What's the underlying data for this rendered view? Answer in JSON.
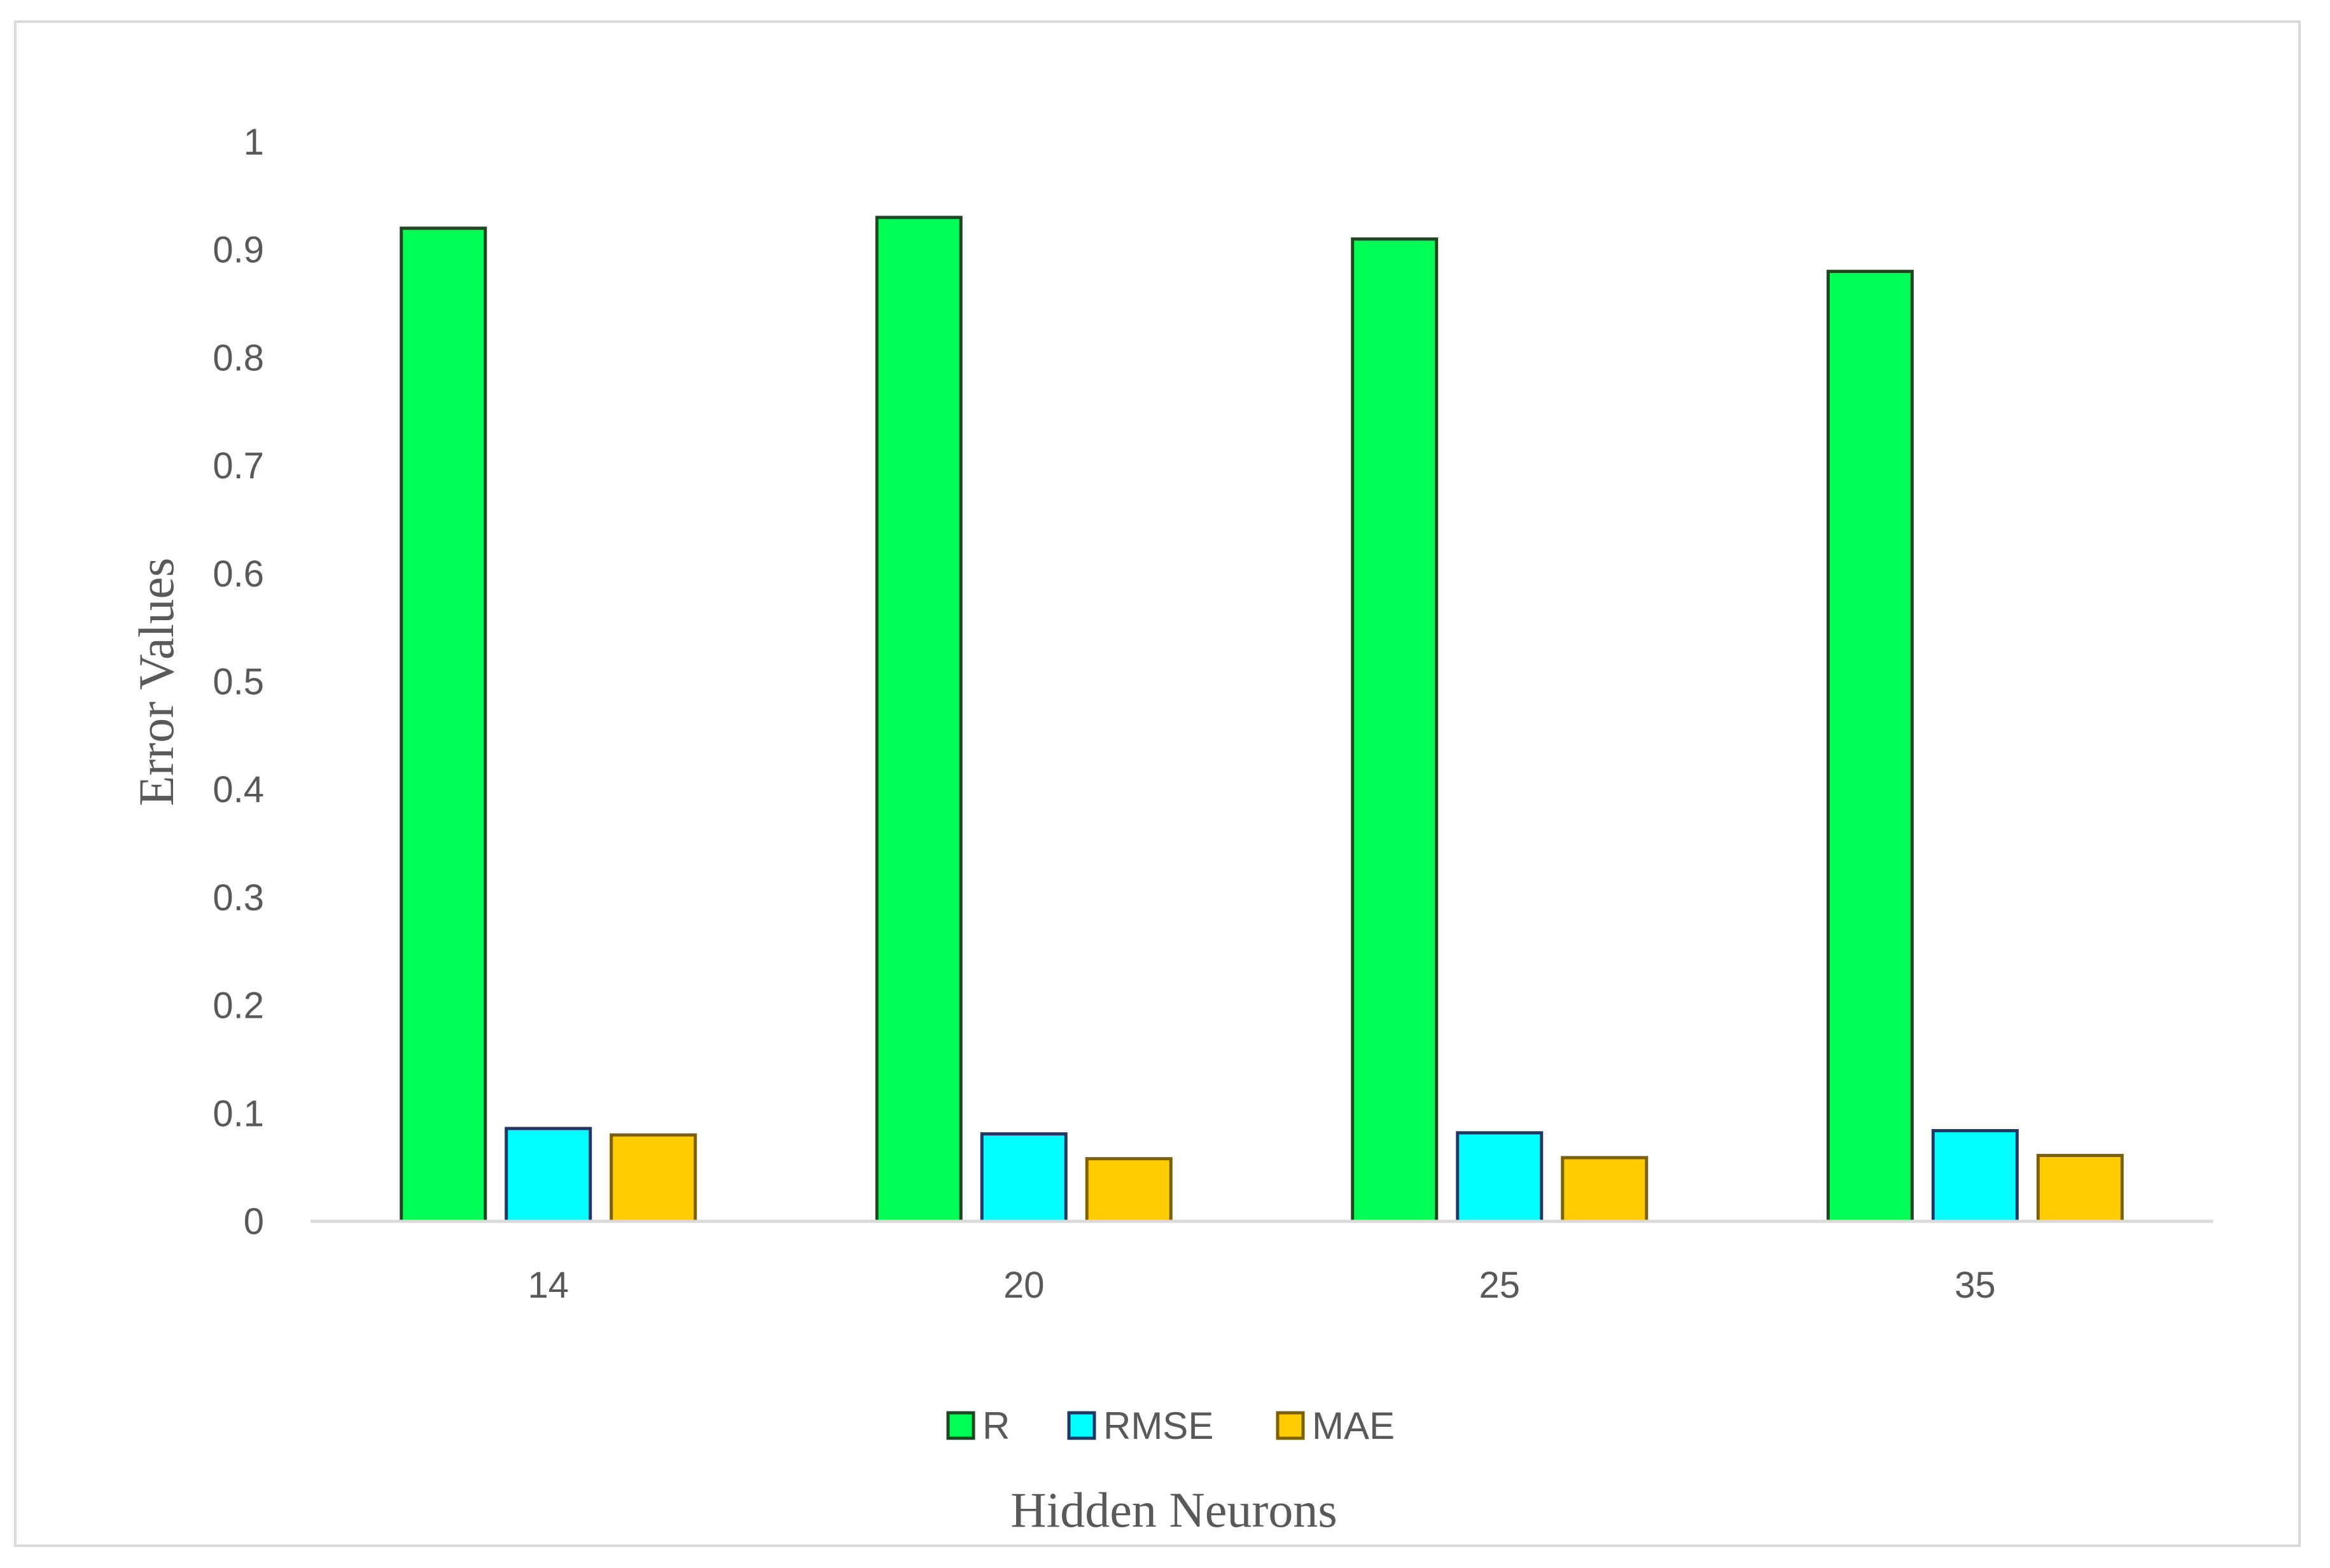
{
  "chart_data": {
    "type": "bar",
    "title": "",
    "xlabel": "Hidden Neurons",
    "ylabel": "Error Values",
    "categories": [
      "14",
      "20",
      "25",
      "35"
    ],
    "ylim": [
      0,
      1
    ],
    "yticks": [
      "0",
      "0.1",
      "0.2",
      "0.3",
      "0.4",
      "0.5",
      "0.6",
      "0.7",
      "0.8",
      "0.9",
      "1"
    ],
    "grid": false,
    "legend_position": "bottom",
    "series": [
      {
        "name": "R",
        "values": [
          0.92,
          0.93,
          0.91,
          0.88
        ],
        "color": "#00FF55",
        "stroke": "#1E4620"
      },
      {
        "name": "RMSE",
        "values": [
          0.086,
          0.081,
          0.082,
          0.084
        ],
        "color": "#00FFFF",
        "stroke": "#1F3864"
      },
      {
        "name": "MAE",
        "values": [
          0.08,
          0.058,
          0.059,
          0.061
        ],
        "color": "#FFCC00",
        "stroke": "#7F6000"
      }
    ]
  }
}
